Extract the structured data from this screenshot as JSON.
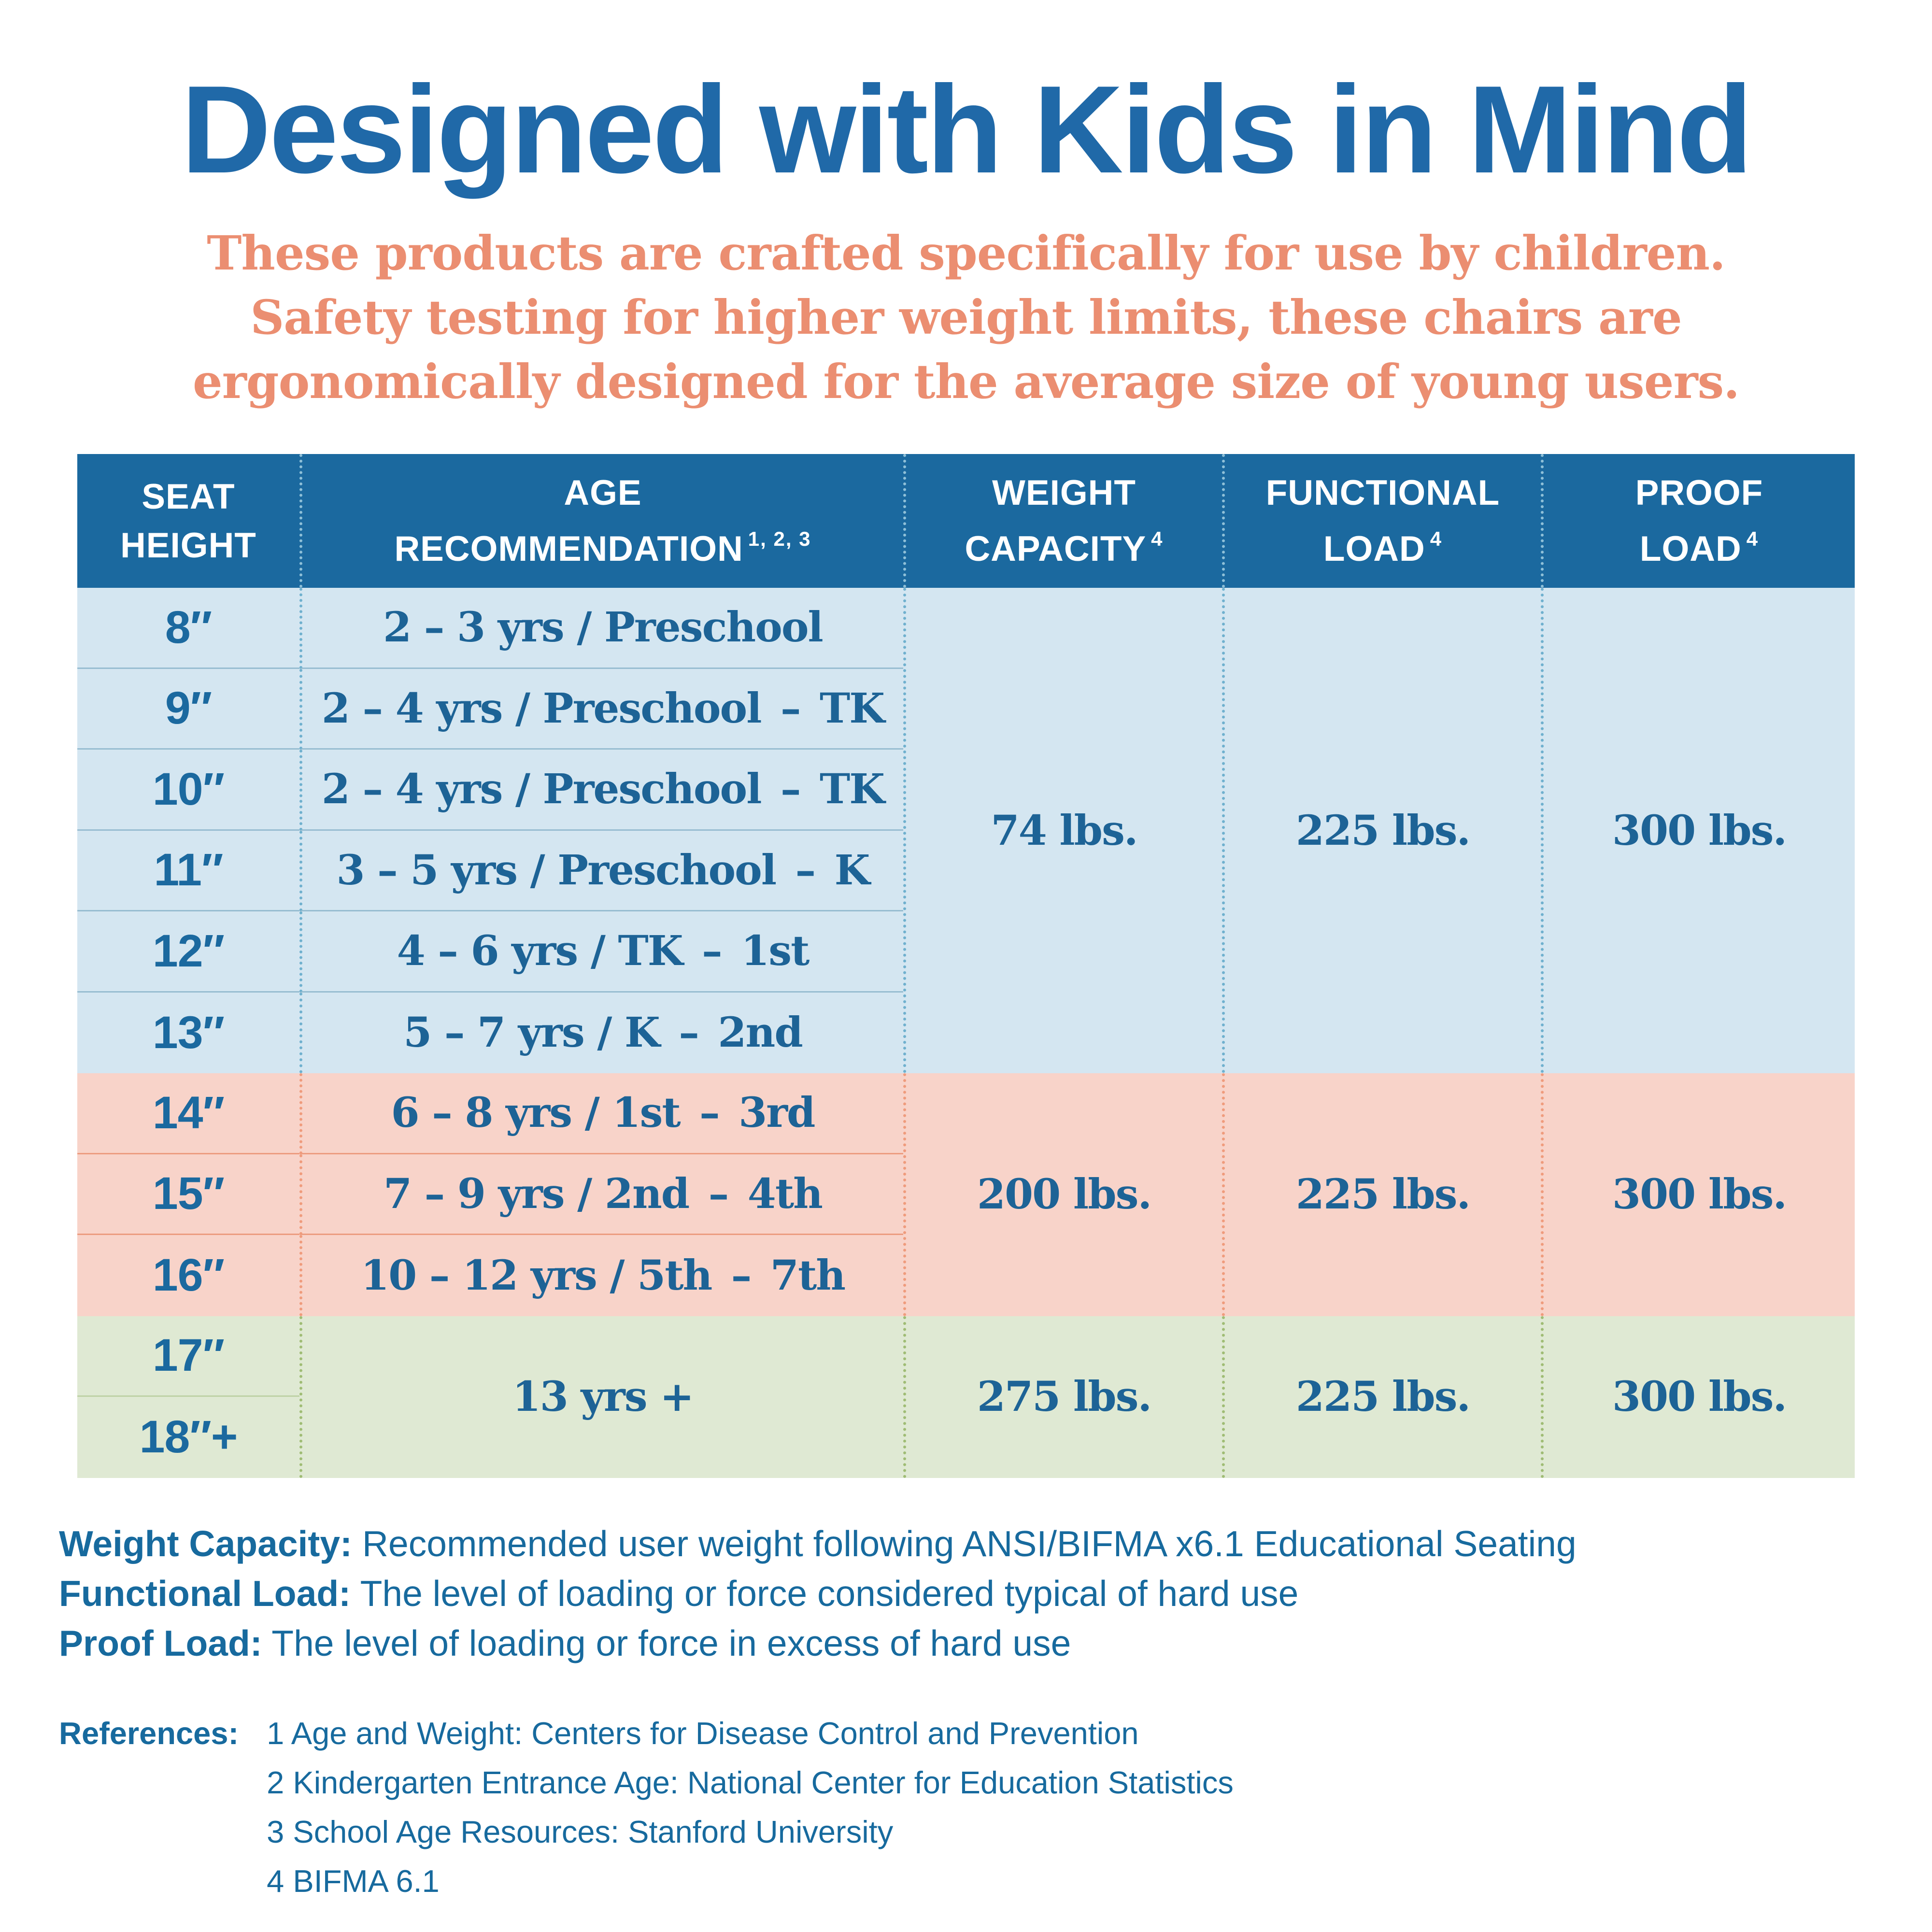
{
  "title": "Designed with Kids in Mind",
  "subtitle": [
    "These products are crafted specifically for use by children.",
    "Safety testing for higher weight limits, these chairs are",
    "ergonomically designed for the average size of young users."
  ],
  "table": {
    "headers": [
      {
        "line1": "SEAT",
        "line2": "HEIGHT"
      },
      {
        "line1": "AGE",
        "line2": "RECOMMENDATION",
        "sup": "1, 2, 3"
      },
      {
        "line1": "WEIGHT",
        "line2": "CAPACITY",
        "sup": "4"
      },
      {
        "line1": "FUNCTIONAL",
        "line2": "LOAD",
        "sup": "4"
      },
      {
        "line1": "PROOF",
        "line2": "LOAD",
        "sup": "4"
      }
    ],
    "groups": [
      {
        "rows": [
          {
            "height": "8″",
            "age": "2 – 3 yrs / Preschool"
          },
          {
            "height": "9″",
            "age": "2 – 4 yrs / Preschool – TK"
          },
          {
            "height": "10″",
            "age": "2 – 4 yrs / Preschool – TK"
          },
          {
            "height": "11″",
            "age": "3 – 5 yrs / Preschool – K"
          },
          {
            "height": "12″",
            "age": "4 – 6 yrs / TK – 1st"
          },
          {
            "height": "13″",
            "age": "5 – 7 yrs / K – 2nd"
          }
        ],
        "weight_capacity": "74 lbs.",
        "functional_load": "225 lbs.",
        "proof_load": "300 lbs."
      },
      {
        "rows": [
          {
            "height": "14″",
            "age": "6 – 8 yrs / 1st – 3rd"
          },
          {
            "height": "15″",
            "age": "7 – 9 yrs / 2nd – 4th"
          },
          {
            "height": "16″",
            "age": "10 – 12 yrs / 5th – 7th"
          }
        ],
        "weight_capacity": "200 lbs.",
        "functional_load": "225 lbs.",
        "proof_load": "300 lbs."
      },
      {
        "rows": [
          {
            "height": "17″"
          },
          {
            "height": "18″+"
          }
        ],
        "age": "13 yrs +",
        "weight_capacity": "275 lbs.",
        "functional_load": "225 lbs.",
        "proof_load": "300 lbs."
      }
    ]
  },
  "definitions": [
    {
      "label": "Weight Capacity:",
      "text": " Recommended user weight following ANSI/BIFMA x6.1 Educational Seating"
    },
    {
      "label": "Functional Load:",
      "text": " The level of loading or force considered typical of hard use"
    },
    {
      "label": "Proof Load:",
      "text": " The level of loading or force in excess of hard use"
    }
  ],
  "references": {
    "label": "References:",
    "items": [
      "1 Age and Weight: Centers for Disease Control and Prevention",
      "2 Kindergarten Entrance Age: National Center for Education Statistics",
      "3 School Age Resources: Stanford University",
      "4 BIFMA 6.1"
    ]
  },
  "colors": {
    "title_blue": "#2069A8",
    "header_blue": "#1B699F",
    "text_blue": "#1D6396",
    "footer_blue": "#176A9E",
    "subtitle_salmon": "#EB8E71",
    "section_blue_bg": "#D4E6F1",
    "section_pink_bg": "#F8D3C9",
    "section_green_bg": "#DFE9D3",
    "dash_header": "#8FC0D8",
    "dash_blue": "#6FB0CE",
    "dash_pink": "#EF9B7C",
    "dash_green": "#9FBC74",
    "line_blue": "#97BDD1",
    "line_pink": "#EC9C80",
    "line_green": "#BFD2A6"
  }
}
